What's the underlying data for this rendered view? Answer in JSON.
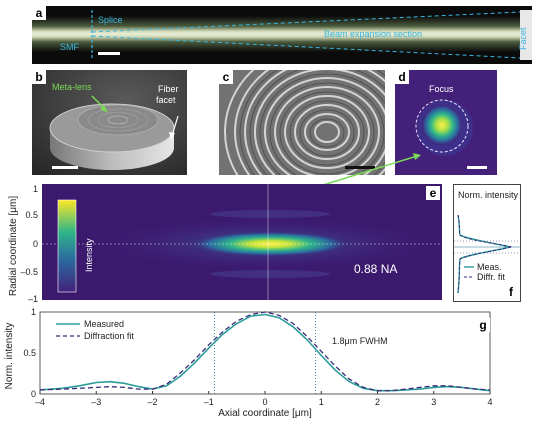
{
  "panels": {
    "a": {
      "letter": "a",
      "labels": {
        "splice": "Splice",
        "smf": "SMF",
        "beam": "Beam expansion section",
        "facet": "Facet"
      }
    },
    "b": {
      "letter": "b",
      "labels": {
        "metalens": "Meta-lens",
        "fiber": "Fiber",
        "facet": "facet"
      }
    },
    "c": {
      "letter": "c"
    },
    "d": {
      "letter": "d",
      "labels": {
        "focus": "Focus"
      }
    },
    "e": {
      "letter": "e",
      "ylabel": "Radial coordinate [μm]",
      "yticks": [
        "1",
        "0.5",
        "0",
        "–0.5",
        "–1"
      ],
      "colorbar_label": "Intensity",
      "na_label": "0.88 NA"
    },
    "f": {
      "letter": "f",
      "title": "Norm. intensity",
      "legend": [
        "Meas.",
        "Diffr. fit"
      ]
    },
    "g": {
      "letter": "g"
    }
  },
  "chart_data": {
    "type": "line",
    "title": "",
    "xlabel": "Axial coordinate [μm]",
    "ylabel": "Norm. intensity",
    "xlim": [
      -4,
      4
    ],
    "ylim": [
      0,
      1
    ],
    "xticks": [
      -4,
      -3,
      -2,
      -1,
      0,
      1,
      2,
      3,
      4
    ],
    "yticks": [
      0,
      0.5,
      1
    ],
    "annotation": "1.8μm FWHM",
    "fwhm_markers": [
      -0.9,
      0.9
    ],
    "legend_position": "top-left",
    "series": [
      {
        "name": "Measured",
        "color": "#2a9d9a",
        "style": "solid",
        "x": [
          -4,
          -3.6,
          -3.3,
          -3.0,
          -2.75,
          -2.5,
          -2.25,
          -2.0,
          -1.75,
          -1.5,
          -1.25,
          -1.0,
          -0.75,
          -0.5,
          -0.25,
          0,
          0.25,
          0.5,
          0.75,
          1.0,
          1.25,
          1.5,
          1.75,
          2.0,
          2.25,
          2.5,
          2.75,
          3.0,
          3.25,
          3.5,
          3.75,
          4.0
        ],
        "y": [
          0.05,
          0.07,
          0.1,
          0.14,
          0.15,
          0.13,
          0.09,
          0.06,
          0.1,
          0.22,
          0.38,
          0.56,
          0.73,
          0.86,
          0.95,
          0.97,
          0.93,
          0.82,
          0.66,
          0.47,
          0.29,
          0.15,
          0.07,
          0.04,
          0.04,
          0.05,
          0.06,
          0.08,
          0.09,
          0.08,
          0.06,
          0.04
        ]
      },
      {
        "name": "Diffraction fit",
        "color": "#3a2a7a",
        "style": "dashed",
        "x": [
          -4,
          -3.6,
          -3.3,
          -3.0,
          -2.75,
          -2.5,
          -2.25,
          -2.0,
          -1.75,
          -1.5,
          -1.25,
          -1.0,
          -0.75,
          -0.5,
          -0.25,
          0,
          0.25,
          0.5,
          0.75,
          1.0,
          1.25,
          1.5,
          1.75,
          2.0,
          2.25,
          2.5,
          2.75,
          3.0,
          3.25,
          3.5,
          3.75,
          4.0
        ],
        "y": [
          0.05,
          0.06,
          0.07,
          0.08,
          0.09,
          0.08,
          0.06,
          0.06,
          0.12,
          0.26,
          0.42,
          0.6,
          0.76,
          0.89,
          0.97,
          1.0,
          0.96,
          0.86,
          0.7,
          0.52,
          0.34,
          0.18,
          0.08,
          0.04,
          0.04,
          0.06,
          0.08,
          0.1,
          0.1,
          0.08,
          0.06,
          0.05
        ]
      }
    ]
  },
  "colors": {
    "field_bg": "#3b1a6e",
    "focus_core": "#ffe135",
    "measured": "#2a9d9a",
    "fit": "#3a2a7a",
    "cyan_label": "#38b6e0"
  }
}
